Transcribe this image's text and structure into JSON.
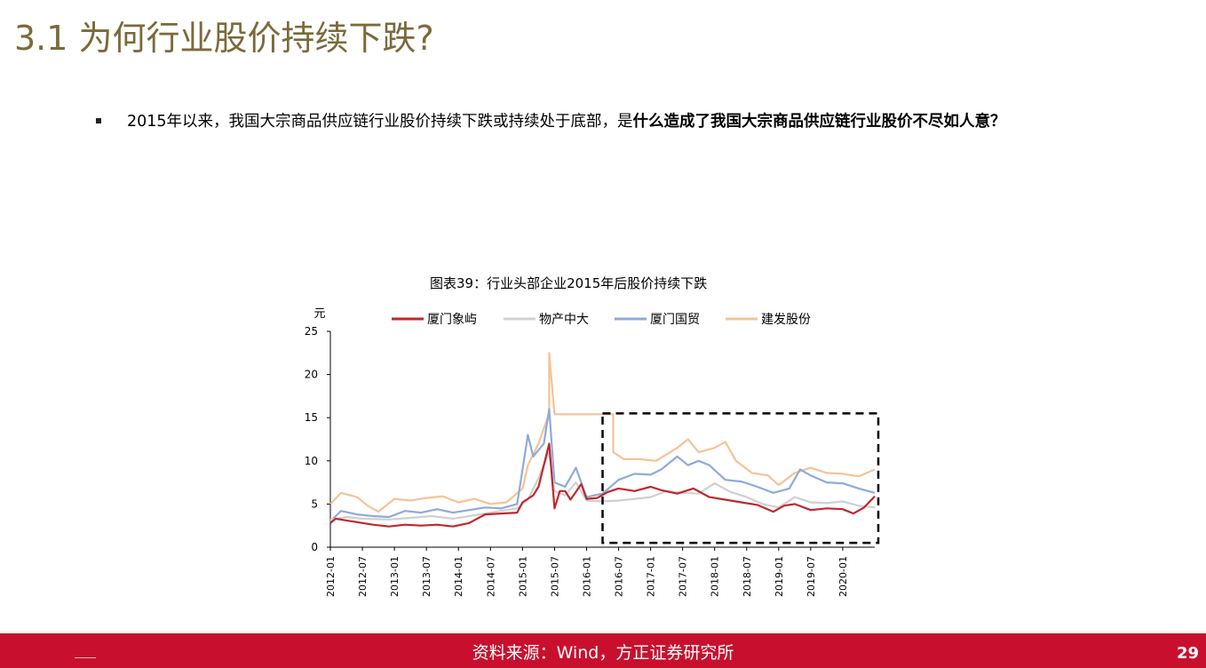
{
  "slide": {
    "title": "3.1 为何行业股价持续下跌?",
    "bullet_normal": "2015年以来，我国大宗商品供应链行业股价持续下跌或持续处于底部，是",
    "bullet_bold": "什么造成了我国大宗商品供应链行业股价不尽如人意？"
  },
  "footer": {
    "source": "资料来源：Wind，方正证券研究所",
    "page_number": "29"
  },
  "chart_data": {
    "type": "line",
    "title": "图表39：行业头部企业2015年后股价持续下跌",
    "ylabel": "元",
    "ylim": [
      0,
      25
    ],
    "y_ticks": [
      "0",
      "5",
      "10",
      "15",
      "20",
      "25"
    ],
    "x_ticks": [
      "2012-01",
      "2012-07",
      "2013-01",
      "2013-07",
      "2014-01",
      "2014-07",
      "2015-01",
      "2015-07",
      "2016-01",
      "2016-07",
      "2017-01",
      "2017-07",
      "2018-01",
      "2018-07",
      "2019-01",
      "2019-07",
      "2020-01"
    ],
    "x_range": [
      "2012-01",
      "2020-07"
    ],
    "legend_position": "top",
    "highlight_box": {
      "x_start": "2016-04",
      "x_end": "2020-07",
      "y_start": 0.5,
      "y_end": 15.5
    },
    "series": [
      {
        "name": "厦门象屿",
        "color": "#c0272d",
        "points": [
          [
            "2012-01",
            2.8
          ],
          [
            "2012-02",
            3.3
          ],
          [
            "2012-04",
            3.1
          ],
          [
            "2012-06",
            2.9
          ],
          [
            "2012-09",
            2.6
          ],
          [
            "2012-12",
            2.4
          ],
          [
            "2013-03",
            2.6
          ],
          [
            "2013-06",
            2.5
          ],
          [
            "2013-09",
            2.6
          ],
          [
            "2013-12",
            2.4
          ],
          [
            "2014-03",
            2.8
          ],
          [
            "2014-06",
            3.8
          ],
          [
            "2014-09",
            3.9
          ],
          [
            "2014-12",
            4.0
          ],
          [
            "2015-01",
            5.2
          ],
          [
            "2015-03",
            6.0
          ],
          [
            "2015-04",
            7.0
          ],
          [
            "2015-05",
            9.5
          ],
          [
            "2015-06",
            12.0
          ],
          [
            "2015-07",
            4.5
          ],
          [
            "2015-08",
            6.5
          ],
          [
            "2015-09",
            6.5
          ],
          [
            "2015-10",
            5.5
          ],
          [
            "2015-12",
            7.3
          ],
          [
            "2016-01",
            5.6
          ],
          [
            "2016-03",
            5.7
          ],
          [
            "2016-05",
            6.4
          ],
          [
            "2016-07",
            6.8
          ],
          [
            "2016-10",
            6.5
          ],
          [
            "2017-01",
            7.0
          ],
          [
            "2017-03",
            6.6
          ],
          [
            "2017-06",
            6.2
          ],
          [
            "2017-09",
            6.8
          ],
          [
            "2017-12",
            5.8
          ],
          [
            "2018-03",
            5.5
          ],
          [
            "2018-06",
            5.2
          ],
          [
            "2018-09",
            4.9
          ],
          [
            "2018-12",
            4.1
          ],
          [
            "2019-02",
            4.8
          ],
          [
            "2019-04",
            5.0
          ],
          [
            "2019-07",
            4.3
          ],
          [
            "2019-10",
            4.5
          ],
          [
            "2020-01",
            4.4
          ],
          [
            "2020-03",
            3.9
          ],
          [
            "2020-05",
            4.6
          ],
          [
            "2020-07",
            5.9
          ]
        ]
      },
      {
        "name": "物产中大",
        "color": "#d0d0d0",
        "points": [
          [
            "2012-01",
            3.2
          ],
          [
            "2012-04",
            3.5
          ],
          [
            "2012-07",
            3.3
          ],
          [
            "2012-12",
            3.2
          ],
          [
            "2013-04",
            3.4
          ],
          [
            "2013-08",
            3.6
          ],
          [
            "2013-12",
            3.3
          ],
          [
            "2014-04",
            3.7
          ],
          [
            "2014-08",
            4.1
          ],
          [
            "2014-12",
            4.5
          ],
          [
            "2015-02",
            5.5
          ],
          [
            "2015-04",
            8.0
          ],
          [
            "2015-06",
            11.0
          ],
          [
            "2015-07",
            6.5
          ],
          [
            "2015-09",
            6.0
          ],
          [
            "2015-11",
            7.5
          ],
          [
            "2016-01",
            5.4
          ],
          [
            "2016-04",
            5.3
          ],
          [
            "2016-07",
            5.4
          ],
          [
            "2016-10",
            5.6
          ],
          [
            "2017-01",
            5.8
          ],
          [
            "2017-04",
            6.5
          ],
          [
            "2017-07",
            6.3
          ],
          [
            "2017-10",
            6.2
          ],
          [
            "2018-01",
            7.4
          ],
          [
            "2018-04",
            6.4
          ],
          [
            "2018-07",
            5.8
          ],
          [
            "2018-10",
            5.0
          ],
          [
            "2019-01",
            4.6
          ],
          [
            "2019-04",
            5.8
          ],
          [
            "2019-07",
            5.2
          ],
          [
            "2019-10",
            5.1
          ],
          [
            "2020-01",
            5.3
          ],
          [
            "2020-04",
            4.8
          ],
          [
            "2020-07",
            4.6
          ]
        ]
      },
      {
        "name": "厦门国贸",
        "color": "#8eaadb",
        "points": [
          [
            "2012-01",
            3.0
          ],
          [
            "2012-03",
            4.2
          ],
          [
            "2012-06",
            3.8
          ],
          [
            "2012-09",
            3.6
          ],
          [
            "2012-12",
            3.5
          ],
          [
            "2013-03",
            4.2
          ],
          [
            "2013-06",
            4.0
          ],
          [
            "2013-09",
            4.4
          ],
          [
            "2013-12",
            4.0
          ],
          [
            "2014-03",
            4.3
          ],
          [
            "2014-06",
            4.6
          ],
          [
            "2014-09",
            4.5
          ],
          [
            "2014-12",
            5.0
          ],
          [
            "2015-01",
            9.0
          ],
          [
            "2015-02",
            13.0
          ],
          [
            "2015-03",
            10.5
          ],
          [
            "2015-05",
            12.0
          ],
          [
            "2015-06",
            16.0
          ],
          [
            "2015-07",
            7.5
          ],
          [
            "2015-09",
            7.0
          ],
          [
            "2015-11",
            9.2
          ],
          [
            "2016-01",
            5.8
          ],
          [
            "2016-04",
            6.2
          ],
          [
            "2016-07",
            7.8
          ],
          [
            "2016-10",
            8.5
          ],
          [
            "2017-01",
            8.4
          ],
          [
            "2017-03",
            9.0
          ],
          [
            "2017-06",
            10.5
          ],
          [
            "2017-08",
            9.5
          ],
          [
            "2017-10",
            10.0
          ],
          [
            "2017-12",
            9.5
          ],
          [
            "2018-03",
            7.8
          ],
          [
            "2018-06",
            7.6
          ],
          [
            "2018-09",
            7.0
          ],
          [
            "2018-12",
            6.3
          ],
          [
            "2019-03",
            6.8
          ],
          [
            "2019-05",
            9.0
          ],
          [
            "2019-07",
            8.3
          ],
          [
            "2019-10",
            7.5
          ],
          [
            "2020-01",
            7.4
          ],
          [
            "2020-04",
            6.8
          ],
          [
            "2020-07",
            6.3
          ]
        ]
      },
      {
        "name": "建发股份",
        "color": "#f5c396",
        "points": [
          [
            "2012-01",
            5.0
          ],
          [
            "2012-03",
            6.3
          ],
          [
            "2012-06",
            5.8
          ],
          [
            "2012-08",
            4.8
          ],
          [
            "2012-10",
            4.1
          ],
          [
            "2013-01",
            5.6
          ],
          [
            "2013-04",
            5.4
          ],
          [
            "2013-07",
            5.7
          ],
          [
            "2013-10",
            5.9
          ],
          [
            "2014-01",
            5.2
          ],
          [
            "2014-04",
            5.6
          ],
          [
            "2014-07",
            5.0
          ],
          [
            "2014-10",
            5.2
          ],
          [
            "2015-01",
            6.8
          ],
          [
            "2015-02",
            9.5
          ],
          [
            "2015-04",
            12.0
          ],
          [
            "2015-06",
            15.5
          ],
          [
            "2015-06",
            22.5
          ],
          [
            "2015-07",
            15.4
          ],
          [
            "2016-06",
            15.4
          ],
          [
            "2016-06",
            11.0
          ],
          [
            "2016-08",
            10.2
          ],
          [
            "2016-11",
            10.2
          ],
          [
            "2017-02",
            10.0
          ],
          [
            "2017-06",
            11.5
          ],
          [
            "2017-08",
            12.5
          ],
          [
            "2017-10",
            11.0
          ],
          [
            "2018-01",
            11.5
          ],
          [
            "2018-03",
            12.2
          ],
          [
            "2018-05",
            10.0
          ],
          [
            "2018-08",
            8.6
          ],
          [
            "2018-11",
            8.3
          ],
          [
            "2019-01",
            7.2
          ],
          [
            "2019-04",
            8.6
          ],
          [
            "2019-07",
            9.2
          ],
          [
            "2019-10",
            8.6
          ],
          [
            "2020-01",
            8.5
          ],
          [
            "2020-04",
            8.2
          ],
          [
            "2020-07",
            9.0
          ]
        ]
      }
    ]
  }
}
